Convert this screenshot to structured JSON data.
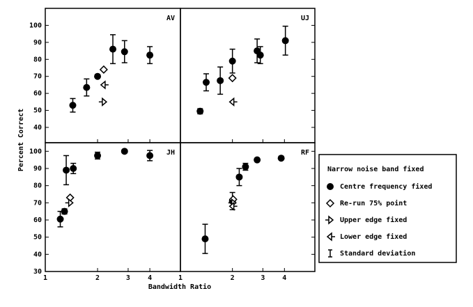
{
  "chart_data": [
    {
      "type": "scatter",
      "label": "AV",
      "xscale": "log",
      "xlim": [
        1,
        6
      ],
      "ylim": [
        31,
        110
      ],
      "xticks": [
        1,
        2,
        3,
        4
      ],
      "yticks": [
        40,
        50,
        60,
        70,
        80,
        90,
        100
      ],
      "series": [
        {
          "name": "Centre frequency fixed",
          "marker": "circle",
          "x": [
            1.44,
            1.73,
            2.0,
            2.45,
            2.86,
            4.0
          ],
          "values": [
            53,
            63.5,
            70,
            86,
            84.5,
            82.5
          ],
          "errors": [
            4,
            5,
            null,
            8.5,
            6.5,
            5
          ]
        },
        {
          "name": "Re-run 75% point",
          "marker": "diamond",
          "x": [
            2.17
          ],
          "values": [
            74
          ],
          "errors": [
            null
          ]
        },
        {
          "name": "Upper edge fixed",
          "marker": "right",
          "x": [
            2.17
          ],
          "values": [
            55
          ],
          "errors": [
            null
          ]
        },
        {
          "name": "Lower edge fixed",
          "marker": "left",
          "x": [
            2.17
          ],
          "values": [
            65
          ],
          "errors": [
            null
          ]
        }
      ]
    },
    {
      "type": "scatter",
      "label": "UJ",
      "xscale": "log",
      "xlim": [
        1,
        6
      ],
      "ylim": [
        31,
        110
      ],
      "xticks": [
        1,
        2,
        3,
        4
      ],
      "yticks": [
        40,
        50,
        60,
        70,
        80,
        90,
        100
      ],
      "series": [
        {
          "name": "Centre frequency fixed",
          "marker": "circle",
          "x": [
            1.3,
            1.41,
            1.7,
            2.0,
            2.78,
            2.9,
            4.05
          ],
          "values": [
            49.5,
            66.5,
            67.5,
            79,
            85,
            82.5,
            91
          ],
          "errors": [
            1.5,
            5,
            8,
            7,
            7,
            5,
            8.5
          ]
        },
        {
          "name": "Re-run 75% point",
          "marker": "diamond",
          "x": [
            2.0
          ],
          "values": [
            69
          ],
          "errors": [
            null
          ]
        },
        {
          "name": "Lower edge fixed",
          "marker": "left",
          "x": [
            2.0
          ],
          "values": [
            55
          ],
          "errors": [
            null
          ]
        }
      ]
    },
    {
      "type": "scatter",
      "label": "JH",
      "xscale": "log",
      "xlim": [
        1,
        6
      ],
      "ylim": [
        30,
        105
      ],
      "xticks": [
        1,
        2,
        3,
        4
      ],
      "yticks": [
        30,
        40,
        50,
        60,
        70,
        80,
        90,
        100
      ],
      "series": [
        {
          "name": "Centre frequency fixed",
          "marker": "circle",
          "x": [
            1.22,
            1.29,
            1.32,
            1.45,
            2.0,
            2.86,
            4.0
          ],
          "values": [
            60.5,
            65,
            89,
            90,
            97.5,
            100,
            97.5
          ],
          "errors": [
            4.5,
            1.5,
            8.5,
            3,
            2,
            null,
            3
          ]
        },
        {
          "name": "Re-run 75% point",
          "marker": "diamond",
          "x": [
            1.39
          ],
          "values": [
            73
          ],
          "errors": [
            null
          ]
        },
        {
          "name": "Upper edge fixed",
          "marker": "right",
          "x": [
            1.39
          ],
          "values": [
            70
          ],
          "errors": [
            null
          ]
        }
      ]
    },
    {
      "type": "scatter",
      "label": "RF",
      "xscale": "log",
      "xlim": [
        1,
        6
      ],
      "ylim": [
        30,
        105
      ],
      "xticks": [
        1,
        2,
        3,
        4
      ],
      "yticks": [
        30,
        40,
        50,
        60,
        70,
        80,
        90,
        100
      ],
      "series": [
        {
          "name": "Centre frequency fixed",
          "marker": "circle",
          "x": [
            1.39,
            2.0,
            2.19,
            2.38,
            2.78,
            3.83
          ],
          "values": [
            49,
            71,
            85,
            91,
            95,
            96
          ],
          "errors": [
            8.5,
            5,
            5,
            2,
            null,
            null
          ]
        },
        {
          "name": "Re-run 75% point",
          "marker": "diamond",
          "x": [
            2.02
          ],
          "values": [
            72
          ],
          "errors": [
            null
          ]
        },
        {
          "name": "Upper edge fixed",
          "marker": "right",
          "x": [
            2.02
          ],
          "values": [
            70
          ],
          "errors": [
            null
          ]
        },
        {
          "name": "Lower edge fixed",
          "marker": "left",
          "x": [
            2.0
          ],
          "values": [
            68
          ],
          "errors": [
            null
          ]
        }
      ]
    }
  ],
  "xlabel": "Bandwidth Ratio",
  "ylabel": "Percent Correct",
  "legend": {
    "title": "Narrow noise band fixed",
    "error_label": "Standard deviation"
  }
}
